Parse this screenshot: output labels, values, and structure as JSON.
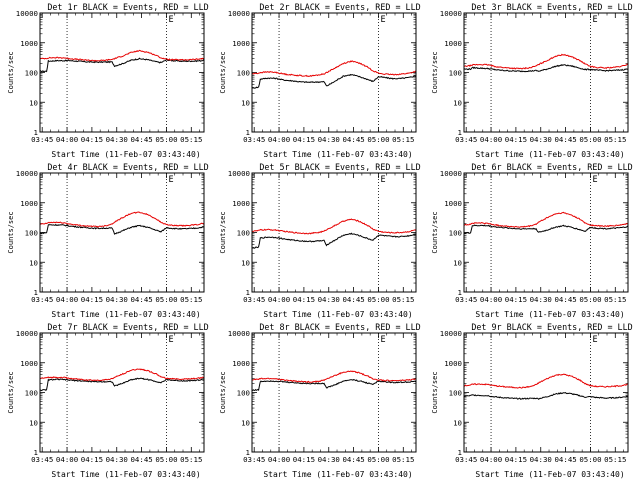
{
  "colors": {
    "events": "#000000",
    "lld": "#e60000",
    "axes": "#000000",
    "background": "#ffffff"
  },
  "shared": {
    "xlabel": "Start Time (11-Feb-07 03:43:40)",
    "ylabel": "Counts/sec",
    "x_tick_labels": [
      "03:45",
      "04:00",
      "04:15",
      "04:30",
      "04:45",
      "05:00",
      "05:15"
    ],
    "x_tick_minutes": [
      1.33,
      16.33,
      31.33,
      46.33,
      61.33,
      76.33,
      91.33
    ],
    "x_range_minutes": [
      0,
      99
    ],
    "dotted_line_minutes": [
      16.33,
      76.33
    ],
    "y_tick_labels": [
      "1",
      "10",
      "100",
      "1000",
      "10000"
    ],
    "y_range": [
      1,
      10000
    ],
    "y_scale": "log",
    "marker_label": "E"
  },
  "chart_data": [
    {
      "type": "line",
      "title": "Det 1r BLACK = Events, RED = LLD",
      "x": [
        0,
        4,
        5,
        10,
        15,
        16.33,
        20,
        25,
        30,
        35,
        40,
        43.5,
        45,
        50,
        55,
        60,
        65,
        70,
        73,
        76.33,
        80,
        85,
        90,
        95,
        99
      ],
      "series": [
        {
          "name": "Events",
          "values": [
            110,
            110,
            240,
            250,
            250,
            255,
            245,
            235,
            225,
            222,
            225,
            225,
            165,
            200,
            260,
            290,
            270,
            230,
            215,
            265,
            250,
            240,
            240,
            245,
            255
          ]
        },
        {
          "name": "LLD",
          "values": [
            290,
            300,
            310,
            315,
            310,
            300,
            285,
            270,
            255,
            250,
            260,
            275,
            295,
            360,
            470,
            540,
            480,
            380,
            310,
            280,
            270,
            265,
            270,
            280,
            295
          ]
        }
      ]
    },
    {
      "type": "line",
      "title": "Det 2r BLACK = Events, RED = LLD",
      "x": [
        0,
        4,
        5,
        10,
        15,
        16.33,
        20,
        25,
        30,
        35,
        40,
        43.5,
        45,
        50,
        55,
        60,
        65,
        70,
        73,
        76.33,
        80,
        85,
        90,
        95,
        99
      ],
      "series": [
        {
          "name": "Events",
          "values": [
            30,
            32,
            60,
            65,
            63,
            60,
            55,
            52,
            48,
            47,
            48,
            49,
            35,
            50,
            75,
            85,
            72,
            58,
            50,
            72,
            68,
            62,
            63,
            68,
            78
          ]
        },
        {
          "name": "LLD",
          "values": [
            90,
            95,
            100,
            105,
            100,
            95,
            88,
            82,
            78,
            76,
            82,
            90,
            100,
            140,
            200,
            240,
            205,
            150,
            115,
            95,
            88,
            85,
            88,
            95,
            110
          ]
        }
      ]
    },
    {
      "type": "line",
      "title": "Det 3r BLACK = Events, RED = LLD",
      "x": [
        0,
        4,
        5,
        10,
        15,
        16.33,
        20,
        25,
        30,
        35,
        40,
        43.5,
        45,
        50,
        55,
        60,
        65,
        70,
        73,
        76.33,
        80,
        85,
        90,
        95,
        99
      ],
      "series": [
        {
          "name": "Events",
          "values": [
            130,
            130,
            145,
            140,
            135,
            130,
            122,
            116,
            112,
            110,
            112,
            116,
            110,
            130,
            160,
            180,
            165,
            140,
            125,
            128,
            120,
            115,
            117,
            122,
            132
          ]
        },
        {
          "name": "LLD",
          "values": [
            160,
            170,
            180,
            185,
            180,
            170,
            155,
            145,
            138,
            135,
            145,
            165,
            185,
            250,
            350,
            400,
            340,
            250,
            195,
            160,
            148,
            142,
            148,
            160,
            190
          ]
        }
      ]
    },
    {
      "type": "line",
      "title": "Det 4r BLACK = Events, RED = LLD",
      "x": [
        0,
        4,
        5,
        10,
        15,
        16.33,
        20,
        25,
        30,
        35,
        40,
        43.5,
        45,
        50,
        55,
        60,
        65,
        70,
        73,
        76.33,
        80,
        85,
        90,
        95,
        99
      ],
      "series": [
        {
          "name": "Events",
          "values": [
            95,
            98,
            180,
            180,
            175,
            170,
            160,
            150,
            142,
            138,
            140,
            140,
            90,
            115,
            150,
            170,
            150,
            120,
            105,
            145,
            138,
            132,
            135,
            142,
            155
          ]
        },
        {
          "name": "LLD",
          "values": [
            190,
            200,
            215,
            220,
            210,
            200,
            185,
            172,
            162,
            158,
            170,
            195,
            225,
            320,
            440,
            480,
            400,
            290,
            220,
            185,
            172,
            168,
            172,
            185,
            205
          ]
        }
      ]
    },
    {
      "type": "line",
      "title": "Det 5r BLACK = Events, RED = LLD",
      "x": [
        0,
        4,
        5,
        10,
        15,
        16.33,
        20,
        25,
        30,
        35,
        40,
        43.5,
        45,
        50,
        55,
        60,
        65,
        70,
        73,
        76.33,
        80,
        85,
        90,
        95,
        99
      ],
      "series": [
        {
          "name": "Events",
          "values": [
            30,
            32,
            65,
            70,
            68,
            65,
            60,
            55,
            52,
            50,
            52,
            53,
            38,
            55,
            80,
            92,
            78,
            62,
            55,
            82,
            78,
            72,
            73,
            78,
            88
          ]
        },
        {
          "name": "LLD",
          "values": [
            110,
            115,
            122,
            125,
            120,
            115,
            108,
            100,
            95,
            93,
            100,
            110,
            125,
            170,
            240,
            280,
            235,
            170,
            130,
            110,
            102,
            98,
            100,
            108,
            125
          ]
        }
      ]
    },
    {
      "type": "line",
      "title": "Det 6r BLACK = Events, RED = LLD",
      "x": [
        0,
        4,
        5,
        10,
        15,
        16.33,
        20,
        25,
        30,
        35,
        40,
        43.5,
        45,
        50,
        55,
        60,
        65,
        70,
        73,
        76.33,
        80,
        85,
        90,
        95,
        99
      ],
      "series": [
        {
          "name": "Events",
          "values": [
            95,
            98,
            170,
            172,
            168,
            162,
            152,
            144,
            136,
            132,
            134,
            134,
            100,
            120,
            150,
            168,
            150,
            124,
            110,
            148,
            140,
            135,
            138,
            145,
            158
          ]
        },
        {
          "name": "LLD",
          "values": [
            180,
            190,
            205,
            210,
            200,
            190,
            176,
            165,
            156,
            152,
            165,
            190,
            220,
            310,
            420,
            460,
            385,
            280,
            210,
            178,
            168,
            163,
            168,
            180,
            200
          ]
        }
      ]
    },
    {
      "type": "line",
      "title": "Det 7r BLACK = Events, RED = LLD",
      "x": [
        0,
        4,
        5,
        10,
        15,
        16.33,
        20,
        25,
        30,
        35,
        40,
        43.5,
        45,
        50,
        55,
        60,
        65,
        70,
        73,
        76.33,
        80,
        85,
        90,
        95,
        99
      ],
      "series": [
        {
          "name": "Events",
          "values": [
            120,
            122,
            265,
            275,
            270,
            265,
            255,
            245,
            235,
            230,
            232,
            232,
            165,
            205,
            270,
            300,
            275,
            235,
            215,
            270,
            258,
            248,
            250,
            258,
            270
          ]
        },
        {
          "name": "LLD",
          "values": [
            300,
            310,
            320,
            325,
            318,
            305,
            290,
            275,
            262,
            256,
            268,
            290,
            320,
            420,
            560,
            620,
            540,
            420,
            340,
            300,
            288,
            282,
            288,
            300,
            320
          ]
        }
      ]
    },
    {
      "type": "line",
      "title": "Det 8r BLACK = Events, RED = LLD",
      "x": [
        0,
        4,
        5,
        10,
        15,
        16.33,
        20,
        25,
        30,
        35,
        40,
        43.5,
        45,
        50,
        55,
        60,
        65,
        70,
        73,
        76.33,
        80,
        85,
        90,
        95,
        99
      ],
      "series": [
        {
          "name": "Events",
          "values": [
            120,
            122,
            235,
            245,
            240,
            235,
            225,
            215,
            205,
            200,
            202,
            202,
            145,
            180,
            240,
            270,
            245,
            205,
            190,
            240,
            228,
            218,
            220,
            228,
            240
          ]
        },
        {
          "name": "LLD",
          "values": [
            270,
            280,
            290,
            295,
            288,
            275,
            260,
            245,
            232,
            226,
            238,
            258,
            285,
            370,
            480,
            520,
            455,
            355,
            290,
            265,
            255,
            250,
            255,
            265,
            285
          ]
        }
      ]
    },
    {
      "type": "line",
      "title": "Det 9r BLACK = Events, RED = LLD",
      "x": [
        0,
        4,
        5,
        10,
        15,
        16.33,
        20,
        25,
        30,
        35,
        40,
        43.5,
        45,
        50,
        55,
        60,
        65,
        70,
        73,
        76.33,
        80,
        85,
        90,
        95,
        99
      ],
      "series": [
        {
          "name": "Events",
          "values": [
            75,
            78,
            82,
            80,
            78,
            74,
            70,
            66,
            63,
            62,
            63,
            64,
            62,
            72,
            88,
            98,
            90,
            78,
            70,
            72,
            68,
            65,
            66,
            69,
            74
          ]
        },
        {
          "name": "LLD",
          "values": [
            170,
            178,
            188,
            192,
            185,
            176,
            165,
            155,
            148,
            145,
            158,
            182,
            210,
            290,
            380,
            410,
            350,
            260,
            200,
            170,
            160,
            156,
            160,
            170,
            190
          ]
        }
      ]
    }
  ]
}
